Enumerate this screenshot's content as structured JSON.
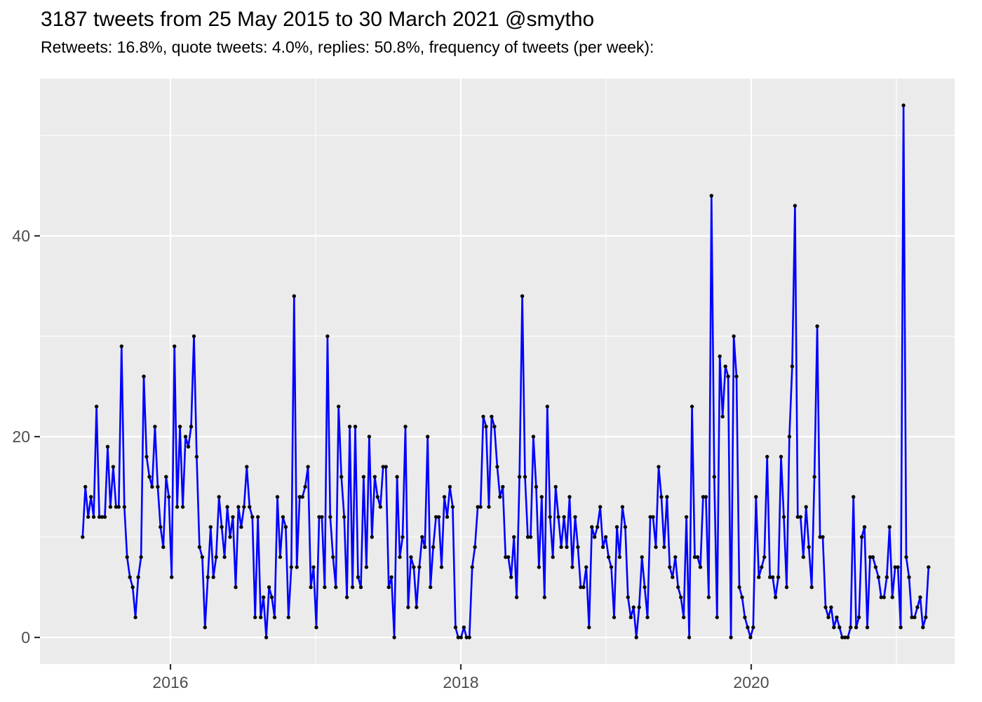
{
  "header": {
    "title": "3187 tweets from 25 May 2015 to 30 March 2021 @smytho",
    "subtitle": "Retweets: 16.8%, quote tweets: 4.0%, replies: 50.8%, frequency of tweets (per week):"
  },
  "chart_data": {
    "type": "line",
    "title": "3187 tweets from 25 May 2015 to 30 March 2021 @smytho",
    "subtitle": "Retweets: 16.8%, quote tweets: 4.0%, replies: 50.8%, frequency of tweets (per week):",
    "xlabel": "",
    "ylabel": "",
    "x_unit": "decimal_year_weekly",
    "x_start_year": 2015.395,
    "x_step_years": 0.019165,
    "x_tick_labels": [
      "2016",
      "2018",
      "2020"
    ],
    "x_tick_values": [
      2016,
      2018,
      2020
    ],
    "x_minor_tick_values": [
      2017,
      2019,
      2021
    ],
    "y_tick_labels": [
      "0",
      "20",
      "40"
    ],
    "y_tick_values": [
      0,
      20,
      40
    ],
    "y_minor_tick_values": [
      10,
      30,
      50
    ],
    "xlim": [
      2015.1,
      2021.4
    ],
    "ylim": [
      -2.7,
      55.6
    ],
    "grid": true,
    "legend_position": "none",
    "series": [
      {
        "name": "tweets per week",
        "values": [
          10,
          15,
          12,
          14,
          12,
          23,
          12,
          12,
          12,
          19,
          13,
          17,
          13,
          13,
          29,
          13,
          8,
          6,
          5,
          2,
          6,
          8,
          26,
          18,
          16,
          15,
          21,
          15,
          11,
          9,
          16,
          14,
          6,
          29,
          13,
          21,
          13,
          20,
          19,
          21,
          30,
          18,
          9,
          8,
          1,
          6,
          11,
          6,
          8,
          14,
          11,
          8,
          13,
          10,
          12,
          5,
          13,
          11,
          13,
          17,
          13,
          12,
          2,
          12,
          2,
          4,
          0,
          5,
          4,
          2,
          14,
          8,
          12,
          11,
          2,
          7,
          34,
          7,
          14,
          14,
          15,
          17,
          5,
          7,
          1,
          12,
          12,
          5,
          30,
          12,
          8,
          5,
          23,
          16,
          12,
          4,
          21,
          5,
          21,
          6,
          5,
          16,
          7,
          20,
          10,
          16,
          14,
          13,
          17,
          17,
          5,
          6,
          0,
          16,
          8,
          10,
          21,
          3,
          8,
          7,
          3,
          7,
          10,
          9,
          20,
          5,
          9,
          12,
          12,
          7,
          14,
          12,
          15,
          13,
          1,
          0,
          0,
          1,
          0,
          0,
          7,
          9,
          13,
          13,
          22,
          21,
          13,
          22,
          21,
          17,
          14,
          15,
          8,
          8,
          6,
          10,
          4,
          16,
          34,
          16,
          10,
          10,
          20,
          15,
          7,
          14,
          4,
          23,
          12,
          8,
          15,
          12,
          9,
          12,
          9,
          14,
          7,
          12,
          9,
          5,
          5,
          7,
          1,
          11,
          10,
          11,
          13,
          9,
          10,
          8,
          7,
          2,
          11,
          8,
          13,
          11,
          4,
          2,
          3,
          0,
          3,
          8,
          5,
          2,
          12,
          12,
          9,
          17,
          14,
          9,
          14,
          7,
          6,
          8,
          5,
          4,
          2,
          12,
          0,
          23,
          8,
          8,
          7,
          14,
          14,
          4,
          44,
          16,
          2,
          28,
          22,
          27,
          26,
          0,
          30,
          26,
          5,
          4,
          2,
          1,
          0,
          1,
          14,
          6,
          7,
          8,
          18,
          6,
          6,
          4,
          6,
          18,
          12,
          5,
          20,
          27,
          43,
          12,
          12,
          8,
          13,
          9,
          5,
          16,
          31,
          10,
          10,
          3,
          2,
          3,
          1,
          2,
          1,
          0,
          0,
          0,
          1,
          14,
          1,
          2,
          10,
          11,
          1,
          8,
          8,
          7,
          6,
          4,
          4,
          6,
          11,
          4,
          7,
          7,
          1,
          53,
          8,
          6,
          2,
          2,
          3,
          4,
          1,
          2,
          7
        ]
      }
    ]
  },
  "colors": {
    "line": "#0000FF",
    "point": "#0A0A0A",
    "panel_background": "#EBEBEB",
    "grid_major": "#FFFFFF",
    "grid_minor": "#FFFFFF",
    "axis_text": "#4D4D4D",
    "tick_mark": "#333333",
    "title_text": "#000000"
  }
}
